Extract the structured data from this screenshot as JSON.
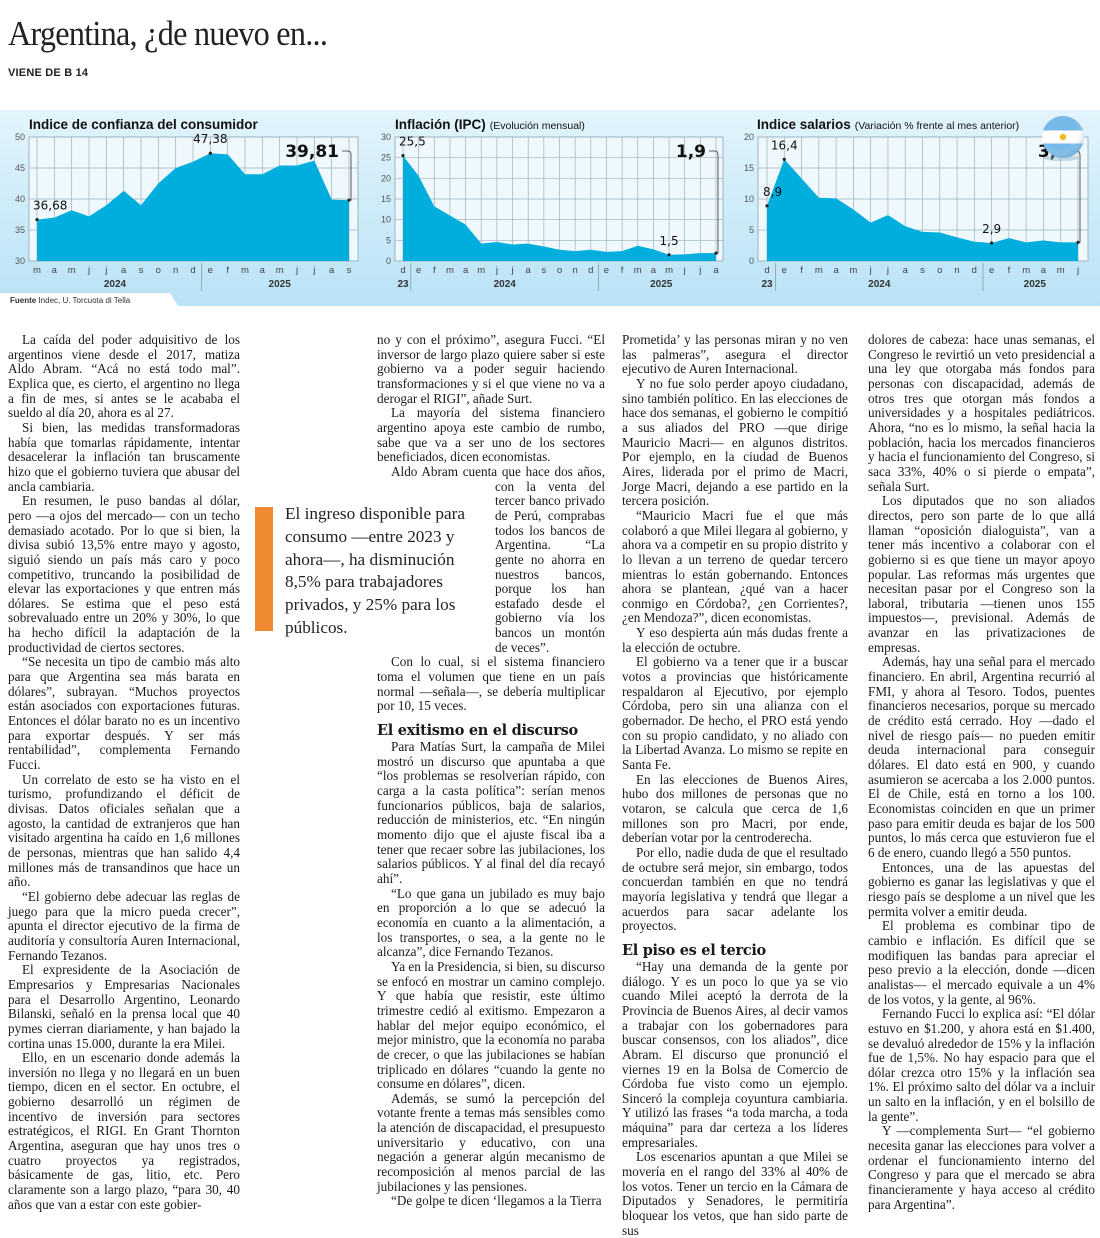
{
  "headline": "Argentina, ¿de nuevo en...",
  "kicker": "VIENE DE B 14",
  "source": {
    "label": "Fuente",
    "text": "Indec, U. Torcuota di Tella"
  },
  "colors": {
    "area": "#00aede",
    "band_top": "#e3f4fc",
    "band_bottom": "#b9e3f6",
    "accent": "#f08a32"
  },
  "chart_data": [
    {
      "type": "area",
      "title": "Indice de confianza del consumidor",
      "subtitle": "",
      "ylim": [
        30,
        50
      ],
      "yticks": [
        30,
        35,
        40,
        45,
        50
      ],
      "categories": [
        "m",
        "a",
        "m",
        "j",
        "j",
        "a",
        "s",
        "o",
        "n",
        "d",
        "e",
        "f",
        "m",
        "a",
        "m",
        "j",
        "j",
        "a",
        "s"
      ],
      "years": [
        {
          "label": "2024",
          "from": 0,
          "to": 9
        },
        {
          "label": "2025",
          "from": 10,
          "to": 18
        }
      ],
      "values": [
        36.68,
        37.0,
        38.2,
        37.2,
        39.0,
        41.3,
        39.0,
        42.5,
        45.0,
        46.0,
        47.38,
        47.2,
        44.0,
        44.0,
        45.4,
        45.4,
        46.2,
        39.9,
        39.81
      ],
      "annotations": [
        {
          "index": 0,
          "label": "36,68"
        },
        {
          "index": 10,
          "label": "47,38"
        },
        {
          "index": 18,
          "label": "39,81",
          "emphasis": true
        }
      ],
      "grid": true
    },
    {
      "type": "area",
      "title": "Inflación (IPC)",
      "subtitle": "(Evolución mensual)",
      "ylim": [
        0,
        30
      ],
      "yticks": [
        0,
        5,
        10,
        15,
        20,
        25,
        30
      ],
      "categories": [
        "d",
        "e",
        "f",
        "m",
        "a",
        "m",
        "j",
        "j",
        "a",
        "s",
        "o",
        "n",
        "d",
        "e",
        "f",
        "m",
        "a",
        "m",
        "j",
        "j",
        "a"
      ],
      "years": [
        {
          "label": "23",
          "from": 0,
          "to": 0
        },
        {
          "label": "2024",
          "from": 1,
          "to": 12
        },
        {
          "label": "2025",
          "from": 13,
          "to": 20
        }
      ],
      "values": [
        25.5,
        20.6,
        13.2,
        11.0,
        8.8,
        4.2,
        4.6,
        4.0,
        4.2,
        3.5,
        2.7,
        2.4,
        2.7,
        2.2,
        2.4,
        3.7,
        2.8,
        1.5,
        1.6,
        1.9,
        1.9
      ],
      "annotations": [
        {
          "index": 0,
          "label": "25,5"
        },
        {
          "index": 17,
          "label": "1,5"
        },
        {
          "index": 20,
          "label": "1,9",
          "emphasis": true
        }
      ],
      "grid": true
    },
    {
      "type": "area",
      "title": "Indice salarios",
      "subtitle": "(Variación % frente al mes anterior)",
      "ylim": [
        0,
        20
      ],
      "yticks": [
        0,
        5,
        10,
        15,
        20
      ],
      "categories": [
        "d",
        "e",
        "f",
        "m",
        "a",
        "m",
        "j",
        "j",
        "a",
        "s",
        "o",
        "n",
        "d",
        "e",
        "f",
        "m",
        "a",
        "m",
        "j"
      ],
      "years": [
        {
          "label": "23",
          "from": 0,
          "to": 0
        },
        {
          "label": "2024",
          "from": 1,
          "to": 12
        },
        {
          "label": "2025",
          "from": 13,
          "to": 18
        }
      ],
      "values": [
        8.9,
        16.4,
        13.3,
        10.2,
        10.1,
        8.3,
        6.2,
        7.4,
        5.6,
        4.7,
        4.6,
        3.8,
        3.1,
        2.9,
        3.7,
        3.0,
        3.3,
        3.0,
        3.0
      ],
      "annotations": [
        {
          "index": 0,
          "label": "8,9"
        },
        {
          "index": 1,
          "label": "16,4"
        },
        {
          "index": 13,
          "label": "2,9"
        },
        {
          "index": 18,
          "label": "3,0",
          "emphasis": true
        }
      ],
      "grid": true,
      "flag_icon": "argentina-flag-icon"
    }
  ],
  "pull_quote": "El ingreso disponible para consumo —entre 2023 y ahora—, ha disminución 8,5% para trabajadores privados, y 25% para los públicos.",
  "columns": [
    [
      {
        "type": "p",
        "text": "La caída del poder adquisitivo de los argentinos viene desde el 2017, matiza Aldo Abram. “Acá no está todo mal”. Explica que, es cierto, el argentino no llega a fin de mes, si antes se le acababa el sueldo al día 20, ahora es al 27."
      },
      {
        "type": "p",
        "text": "Si bien, las medidas transformadoras había que tomarlas rápidamente, intentar desacelerar la inflación tan bruscamente hizo que el gobierno tuviera que abusar del ancla cambiaria."
      },
      {
        "type": "p",
        "text": "En resumen, le puso bandas al dólar, pero —a ojos del mercado— con un techo demasiado acotado. Por lo que si bien, la divisa subió 13,5% entre mayo y agosto, siguió siendo un país más caro y poco competitivo, truncando la posibilidad de elevar las exportaciones y que entren más dólares. Se estima que el peso está sobrevaluado entre un 20% y 30%, lo que ha hecho difícil la adaptación de la productividad de ciertos sectores."
      },
      {
        "type": "p",
        "text": "“Se necesita un tipo de cambio más alto para que Argentina sea más barata en dólares”, subrayan. “Muchos proyectos están asociados con exportaciones futuras. Entonces el dólar barato no es un incentivo para exportar después. Y ser más rentabilidad”, complementa Fernando Fucci."
      },
      {
        "type": "p",
        "text": "Un correlato de esto se ha visto en el turismo, profundizando el déficit de divisas. Datos oficiales señalan que a agosto, la cantidad de extranjeros que han visitado argentina ha caído en 1,6 millones de personas, mientras que han salido 4,4 millones más de transandinos que hace un año."
      },
      {
        "type": "p",
        "text": "“El gobierno debe adecuar las reglas de juego para que la micro pueda crecer”, apunta el director ejecutivo de la firma de auditoría y consultoría Auren Internacional, Fernando Tezanos."
      },
      {
        "type": "p",
        "text": "El expresidente de la Asociación de Empresarios y Empresarias Nacionales para el Desarrollo Argentino, Leonardo Bilanski, señaló en la prensa local que 40 pymes cierran diariamente, y han bajado la cortina unas 15.000, durante la era Milei."
      },
      {
        "type": "p",
        "text": "Ello, en un escenario donde además la inversión no llega y no llegará en un buen tiempo, dicen en el sector. En octubre, el gobierno desarrolló un régimen de incentivo de inversión para sectores estratégicos, el RIGI. En Grant Thornton Argentina, aseguran que hay unos tres o cuatro proyectos ya registrados, básicamente de gas, litio, etc. Pero claramente son a largo plazo, “para 30, 40 años que van a estar con este gobier-"
      }
    ],
    [
      {
        "type": "p",
        "cont": true,
        "text": "no y con el próximo”, asegura Fucci. “El inversor de largo plazo quiere saber si este gobierno va a poder seguir haciendo transformaciones y si el que viene no va a derogar el RIGI”, añade Surt."
      },
      {
        "type": "p",
        "text": "La mayoría del sistema financiero argentino apoya este cambio de rumbo, sabe que va a ser uno de los sectores beneficiados, dicen economistas."
      },
      {
        "type": "p",
        "text": "Aldo Abram cuenta que hace dos años, con la venta del tercer banco privado de Perú, comprabas todos los bancos de Argentina. “La gente no ahorra en nuestros bancos, porque los han estafado desde el gobierno vía los bancos un montón de veces”."
      },
      {
        "type": "p",
        "text": "Con lo cual, si el sistema financiero toma el volumen que tiene en un país normal —señala—, se debería multiplicar por 10, 15 veces."
      },
      {
        "type": "h",
        "text": "El exitismo en el discurso"
      },
      {
        "type": "p",
        "text": "Para Matías Surt, la campaña de Milei mostró un discurso que apuntaba a que “los problemas se resolverían rápido, con carga a la casta política”: serían menos funcionarios públicos, baja de salarios, reducción de ministerios, etc. “En ningún momento dijo que el ajuste fiscal iba a tener que recaer sobre las jubilaciones, los salarios públicos. Y al final del día recayó ahí”."
      },
      {
        "type": "p",
        "text": "“Lo que gana un jubilado es muy bajo en proporción a lo que se adecuó la economía en cuanto a la alimentación, a los transportes, o sea, a la gente no le alcanza”, dice Fernando Tezanos."
      },
      {
        "type": "p",
        "text": "Ya en la Presidencia, si bien, su discurso se enfocó en mostrar un camino complejo. Y que había que resistir, este último trimestre cedió al exitismo. Empezaron a hablar del mejor equipo económico, el mejor ministro, que la economía no paraba de crecer, o que las jubilaciones se habían triplicado en dólares “cuando la gente no consume en dólares”, dicen."
      },
      {
        "type": "p",
        "text": "Además, se sumó la percepción del votante frente a temas más sensibles como la atención de discapacidad, el presupuesto universitario y educativo, con una negación a generar algún mecanismo de recomposición al menos parcial de las jubilaciones y las pensiones."
      },
      {
        "type": "p",
        "text": "“De golpe te dicen ‘llegamos a la Tierra"
      }
    ],
    [
      {
        "type": "p",
        "cont": true,
        "text": "Prometida’ y las personas miran y no ven las palmeras”, asegura el director ejecutivo de Auren Internacional."
      },
      {
        "type": "p",
        "text": "Y no fue solo perder apoyo ciudadano, sino también político. En las elecciones de hace dos semanas, el gobierno le compitió a sus aliados del PRO —que dirige Mauricio Macri— en algunos distritos. Por ejemplo, en la ciudad de Buenos Aires, liderada por el primo de Macri, Jorge Macri, dejando a ese partido en la tercera posición."
      },
      {
        "type": "p",
        "text": "“Mauricio Macri fue el que más colaboró a que Milei llegara al gobierno, y ahora va a competir en su propio distrito y lo llevan a un terreno de quedar tercero mientras lo están gobernando. Entonces ahora se plantean, ¿qué van a hacer conmigo en Córdoba?, ¿en Corrientes?, ¿en Mendoza?”, dicen economistas."
      },
      {
        "type": "p",
        "text": "Y eso despierta aún más dudas frente a la elección de octubre."
      },
      {
        "type": "p",
        "text": "El gobierno va a tener que ir a buscar votos a provincias que históricamente respaldaron al Ejecutivo, por ejemplo Córdoba, pero sin una alianza con el gobernador. De hecho, el PRO está yendo con su propio candidato, y no aliado con la Libertad Avanza. Lo mismo se repite en Santa Fe."
      },
      {
        "type": "p",
        "text": "En las elecciones de Buenos Aires, hubo dos millones de personas que no votaron, se calcula que cerca de 1,6 millones son pro Macri, por ende, deberían votar por la centroderecha."
      },
      {
        "type": "p",
        "text": "Por ello, nadie duda de que el resultado de octubre será mejor, sin embargo, todos concuerdan también en que no tendrá mayoría legislativa y tendrá que llegar a acuerdos para sacar adelante los proyectos."
      },
      {
        "type": "h",
        "text": "El piso es el tercio"
      },
      {
        "type": "p",
        "text": "“Hay una demanda de la gente por diálogo. Y es un poco lo que ya se vio cuando Milei aceptó la derrota de la Provincia de Buenos Aires, al decir vamos a trabajar con los gobernadores para buscar consensos, con los aliados”, dice Abram. El discurso que pronunció el viernes 19 en la Bolsa de Comercio de Córdoba fue visto como un ejemplo. Sinceró la compleja coyuntura cambiaria. Y utilizó las frases “a toda marcha, a toda máquina” para dar certeza a los líderes empresariales."
      },
      {
        "type": "p",
        "text": "Los escenarios apuntan a que Milei se movería en el rango del 33% al 40% de los votos. Tener un tercio en la Cámara de Diputados y Senadores, le permitiría bloquear los vetos, que han sido parte de sus"
      }
    ],
    [
      {
        "type": "p",
        "cont": true,
        "text": "dolores de cabeza: hace unas semanas, el Congreso le revirtió un veto presidencial a una ley que otorgaba más fondos para personas con discapacidad, además de otros tres que otorgan más fondos a universidades y a hospitales pediátricos. Ahora, “no es lo mismo, la señal hacia la población, hacia los mercados financieros y hacia el funcionamiento del Congreso, si saca 33%, 40% o si pierde o empata”, señala Surt."
      },
      {
        "type": "p",
        "text": "Los diputados que no son aliados directos, pero son parte de lo que allá llaman “oposición dialoguista”, van a tener más incentivo a colaborar con el gobierno si es que tiene un mayor apoyo popular. Las reformas más urgentes que necesitan pasar por el Congreso son la laboral, tributaria —tienen unos 155 impuestos—, previsional. Además de avanzar en las privatizaciones de empresas."
      },
      {
        "type": "p",
        "text": "Además, hay una señal para el mercado financiero. En abril, Argentina recurrió al FMI, y ahora al Tesoro. Todos, puentes financieros necesarios, porque su mercado de crédito está cerrado. Hoy —dado el nivel de riesgo país— no pueden emitir deuda internacional para conseguir dólares. El dato está en 900, y cuando asumieron se acercaba a los 2.000 puntos. El de Chile, está en torno a los 100. Economistas coinciden en que un primer paso para emitir deuda es bajar de los 500 puntos, lo más cerca que estuvieron fue el 6 de enero, cuando llegó a 550 puntos."
      },
      {
        "type": "p",
        "text": "Entonces, una de las apuestas del gobierno es ganar las legislativas y que el riesgo país se desplome a un nivel que les permita volver a emitir deuda."
      },
      {
        "type": "p",
        "text": "El problema es combinar tipo de cambio e inflación. Es difícil que se modifiquen las bandas para apreciar el peso previo a la elección, donde —dicen analistas— el mercado equivale a un 4% de los votos, y la gente, al 96%."
      },
      {
        "type": "p",
        "text": "Fernando Fucci lo explica así: “El dólar estuvo en $1.200, y ahora está en $1.400, se devaluó alrededor de 15% y la inflación fue de 1,5%. No hay espacio para que el dólar crezca otro 15% y la inflación sea 1%. El próximo salto del dólar va a incluir un salto en la inflación, y en el bolsillo de la gente”."
      },
      {
        "type": "p",
        "text": "Y —complementa Surt— “el gobierno necesita ganar las elecciones para volver a ordenar el funcionamiento interno del Congreso y para que el mercado se abra financieramente y haya acceso al crédito para Argentina”."
      }
    ]
  ]
}
